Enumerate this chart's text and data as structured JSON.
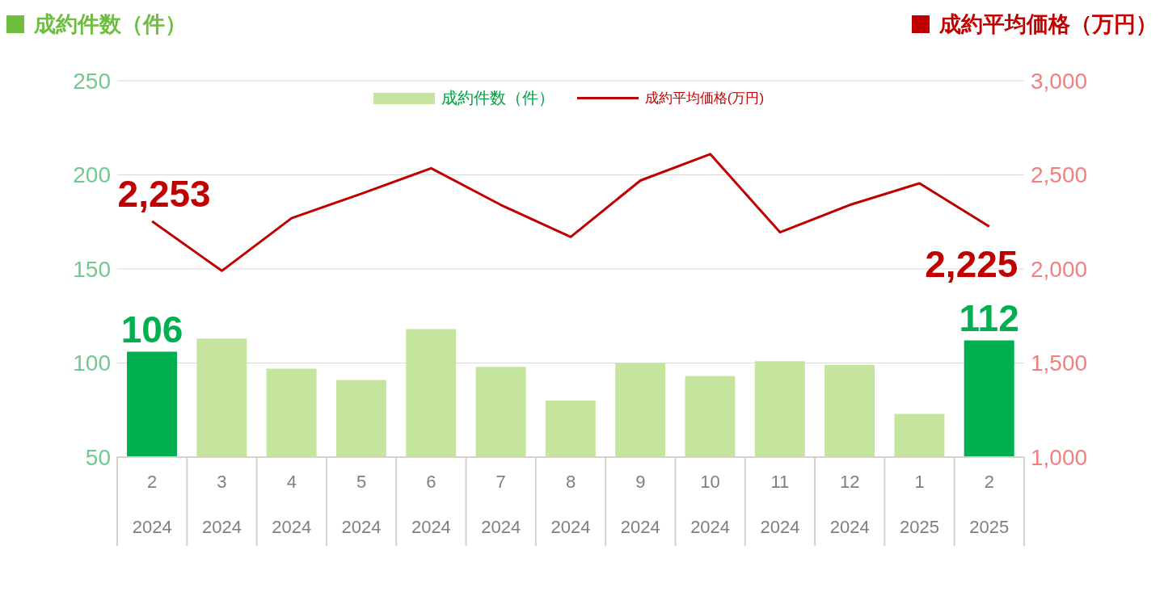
{
  "chart_data": {
    "type": "bar",
    "ylabel": "成約件数（件）",
    "y2label": "成約平均価格（万円）",
    "categories": [
      "2\n2024",
      "3\n2024",
      "4\n2024",
      "5\n2024",
      "6\n2024",
      "7\n2024",
      "8\n2024",
      "9\n2024",
      "10\n2024",
      "11\n2024",
      "12\n2024",
      "1\n2025",
      "2\n2025"
    ],
    "series": [
      {
        "name": "成約件数（件）",
        "color": "#c5e59f",
        "colors": [
          "#00b050",
          "#c5e59f",
          "#c5e59f",
          "#c5e59f",
          "#c5e59f",
          "#c5e59f",
          "#c5e59f",
          "#c5e59f",
          "#c5e59f",
          "#c5e59f",
          "#c5e59f",
          "#c5e59f",
          "#00b050"
        ],
        "values": [
          106,
          113,
          97,
          91,
          118,
          98,
          80,
          100,
          93,
          101,
          99,
          73,
          112
        ],
        "value_labels": [
          "106",
          null,
          null,
          null,
          null,
          null,
          null,
          null,
          null,
          null,
          null,
          null,
          "112"
        ]
      },
      {
        "name": "成約平均価格(万円)",
        "type": "line",
        "axis": "y2",
        "color": "#c00000",
        "values": [
          2253,
          1990,
          2270,
          2400,
          2535,
          2340,
          2170,
          2470,
          2610,
          2195,
          2340,
          2455,
          2225
        ],
        "value_labels": [
          "2,253",
          null,
          null,
          null,
          null,
          null,
          null,
          null,
          null,
          null,
          null,
          null,
          "2,225"
        ]
      }
    ],
    "ylim": [
      50,
      250
    ],
    "yticks": [
      50,
      100,
      150,
      200,
      250
    ],
    "y2lim": [
      1000,
      3000
    ],
    "y2ticks": [
      {
        "value": 1000,
        "label": "1,000"
      },
      {
        "value": 1500,
        "label": "1,500"
      },
      {
        "value": 2000,
        "label": "2,000"
      },
      {
        "value": 2500,
        "label": "2,500"
      },
      {
        "value": 3000,
        "label": "3,000"
      }
    ],
    "grid": "y",
    "legend": "top",
    "marker": "none",
    "line_style": "solid"
  }
}
